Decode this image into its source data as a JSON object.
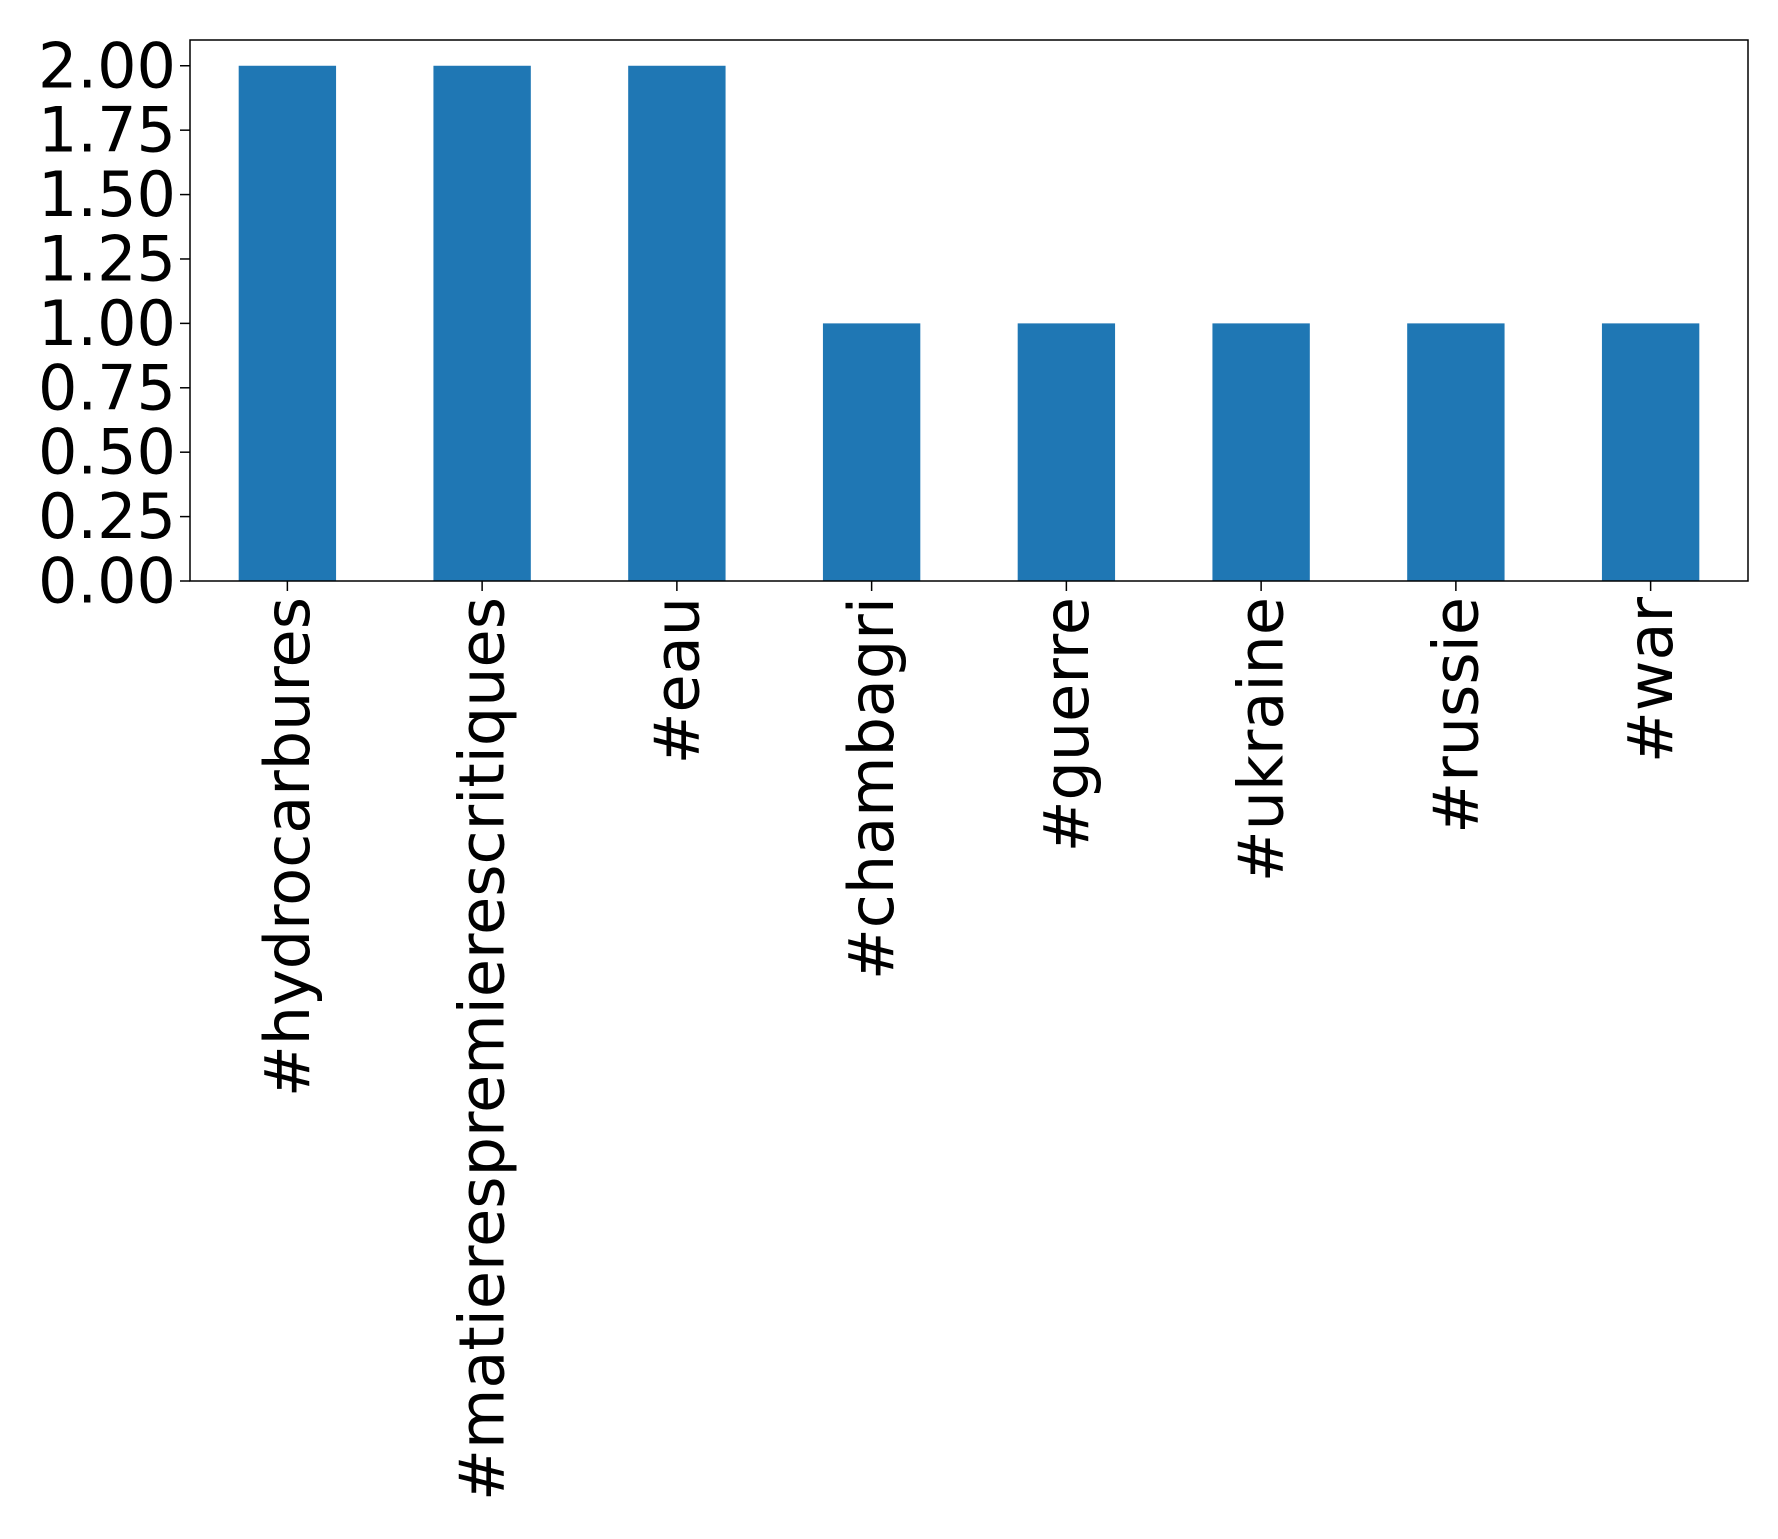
{
  "chart_data": {
    "type": "bar",
    "categories": [
      "#hydrocarbures",
      "#matierespremierescritiques",
      "#eau",
      "#chambagri",
      "#guerre",
      "#ukraine",
      "#russie",
      "#war"
    ],
    "values": [
      2,
      2,
      2,
      1,
      1,
      1,
      1,
      1
    ],
    "ylim": [
      0,
      2.1
    ],
    "yticks": [
      "0.00",
      "0.25",
      "0.50",
      "0.75",
      "1.00",
      "1.25",
      "1.50",
      "1.75",
      "2.00"
    ],
    "grid": false,
    "legend": false
  },
  "colors": {
    "bar": "#1f77b4",
    "axis": "#000000"
  }
}
